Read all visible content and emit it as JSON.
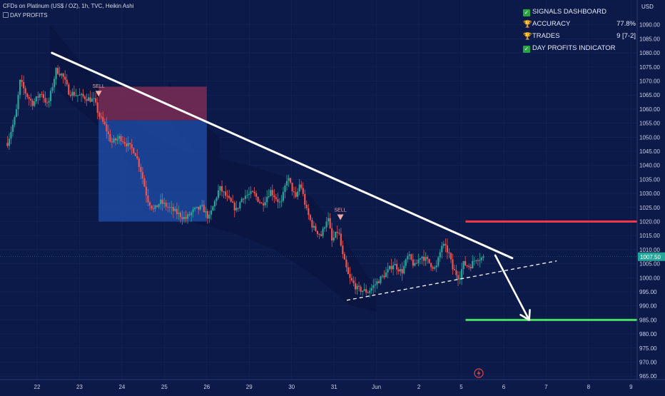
{
  "header": {
    "title": "CFDs on Platinum (US$ / OZ), 1h, TVC, Heikin Ashi",
    "indicator": "DAY PROFITS"
  },
  "dashboard": {
    "title": "SIGNALS DASHBOARD",
    "accuracy_label": "ACCURACY",
    "accuracy_value": "77.8%",
    "trades_label": "TRADES",
    "trades_value": "9 [7-2]",
    "indicator_label": "DAY PROFITS INDICATOR"
  },
  "colors": {
    "background": "#0c1a4a",
    "up_candle": "#26a69a",
    "down_candle": "#ef5350",
    "resistance_line": "#f23645",
    "target_line": "#4cdb64",
    "last_price_badge": "#26a69a"
  },
  "chart_data": {
    "type": "candlestick",
    "title": "CFDs on Platinum (US$ / OZ), 1h, TVC, Heikin Ashi",
    "currency_label": "USD",
    "last_price": 1007.5,
    "last_price_label": "1007.50",
    "ylim": [
      957.5,
      1095
    ],
    "y_ticks": [
      960,
      965,
      970,
      975,
      980,
      985,
      990,
      995,
      1000,
      1005,
      1010,
      1015,
      1020,
      1025,
      1030,
      1035,
      1040,
      1045,
      1050,
      1055,
      1060,
      1065,
      1070,
      1075,
      1080,
      1085,
      1090
    ],
    "y_tick_labels": [
      "960.00",
      "965.00",
      "970.00",
      "975.00",
      "980.00",
      "985.00",
      "990.00",
      "995.00",
      "1000.00",
      "1005.00",
      "1010.00",
      "1015.00",
      "1020.00",
      "1025.00",
      "1030.00",
      "1035.00",
      "1040.00",
      "1045.00",
      "1050.00",
      "1055.00",
      "1060.00",
      "1065.00",
      "1070.00",
      "1075.00",
      "1080.00",
      "1085.00",
      "1090.00"
    ],
    "x_ticks": [
      {
        "label": "22",
        "pos": 0
      },
      {
        "label": "23",
        "pos": 1
      },
      {
        "label": "24",
        "pos": 2
      },
      {
        "label": "25",
        "pos": 3
      },
      {
        "label": "26",
        "pos": 4
      },
      {
        "label": "29",
        "pos": 5
      },
      {
        "label": "30",
        "pos": 6
      },
      {
        "label": "31",
        "pos": 7
      },
      {
        "label": "Jun",
        "pos": 8
      },
      {
        "label": "2",
        "pos": 9
      },
      {
        "label": "5",
        "pos": 10
      },
      {
        "label": "6",
        "pos": 11
      },
      {
        "label": "7",
        "pos": 12
      },
      {
        "label": "8",
        "pos": 13
      },
      {
        "label": "9",
        "pos": 14
      }
    ],
    "price_path": [
      [
        -0.7,
        1048
      ],
      [
        -0.5,
        1058
      ],
      [
        -0.4,
        1070
      ],
      [
        -0.25,
        1065
      ],
      [
        -0.1,
        1062
      ],
      [
        0.1,
        1066
      ],
      [
        0.25,
        1061
      ],
      [
        0.45,
        1074
      ],
      [
        0.6,
        1072
      ],
      [
        0.75,
        1066
      ],
      [
        0.95,
        1065
      ],
      [
        1.15,
        1064
      ],
      [
        1.35,
        1063
      ],
      [
        1.45,
        1058
      ],
      [
        1.6,
        1054
      ],
      [
        1.75,
        1048
      ],
      [
        1.95,
        1050
      ],
      [
        2.15,
        1047
      ],
      [
        2.3,
        1045
      ],
      [
        2.45,
        1038
      ],
      [
        2.6,
        1028
      ],
      [
        2.75,
        1024
      ],
      [
        2.9,
        1027
      ],
      [
        3.1,
        1025
      ],
      [
        3.3,
        1023
      ],
      [
        3.5,
        1021
      ],
      [
        3.7,
        1024
      ],
      [
        3.9,
        1025
      ],
      [
        4.05,
        1021
      ],
      [
        4.3,
        1032
      ],
      [
        4.5,
        1028
      ],
      [
        4.7,
        1024
      ],
      [
        4.85,
        1029
      ],
      [
        5.1,
        1030
      ],
      [
        5.3,
        1026
      ],
      [
        5.5,
        1031
      ],
      [
        5.75,
        1026
      ],
      [
        5.9,
        1036
      ],
      [
        6.1,
        1028
      ],
      [
        6.2,
        1034
      ],
      [
        6.35,
        1024
      ],
      [
        6.5,
        1018
      ],
      [
        6.7,
        1015
      ],
      [
        6.85,
        1022
      ],
      [
        6.95,
        1013
      ],
      [
        7.1,
        1017
      ],
      [
        7.2,
        1008
      ],
      [
        7.35,
        1000
      ],
      [
        7.55,
        996
      ],
      [
        7.8,
        995
      ],
      [
        8.05,
        999
      ],
      [
        8.25,
        1002
      ],
      [
        8.4,
        1005
      ],
      [
        8.6,
        1002
      ],
      [
        8.75,
        1008
      ],
      [
        8.9,
        1004
      ],
      [
        9.05,
        1008
      ],
      [
        9.2,
        1006
      ],
      [
        9.4,
        1003
      ],
      [
        9.55,
        1012
      ],
      [
        9.7,
        1009
      ],
      [
        9.8,
        1003
      ],
      [
        9.95,
        1000
      ],
      [
        10.05,
        1005
      ],
      [
        10.2,
        1004
      ],
      [
        10.35,
        1007
      ],
      [
        10.5,
        1007
      ],
      [
        10.55,
        1007.5
      ]
    ],
    "signals": [
      {
        "label": "SELL",
        "x": 1.45,
        "price": 1065
      },
      {
        "label": "SELL",
        "x": 7.15,
        "price": 1021
      }
    ],
    "trade_box": {
      "x_start": 1.45,
      "x_end": 4.0,
      "entry": 1056,
      "stop": 1068,
      "target": 1020
    },
    "trendline": {
      "start": {
        "x": 0.35,
        "price": 1080
      },
      "end": {
        "x": 11.2,
        "price": 1007
      }
    },
    "support_line": {
      "start": {
        "x": 7.3,
        "price": 992
      },
      "end": {
        "x": 12.25,
        "price": 1006
      }
    },
    "resistance_level": {
      "price": 1020,
      "x_start": 10.1,
      "x_end": 14.3
    },
    "target_level": {
      "price": 985,
      "x_start": 10.1,
      "x_end": 14.3
    },
    "projection_arrow": {
      "start": {
        "x": 10.8,
        "price": 1008
      },
      "end": {
        "x": 11.6,
        "price": 985
      }
    }
  }
}
